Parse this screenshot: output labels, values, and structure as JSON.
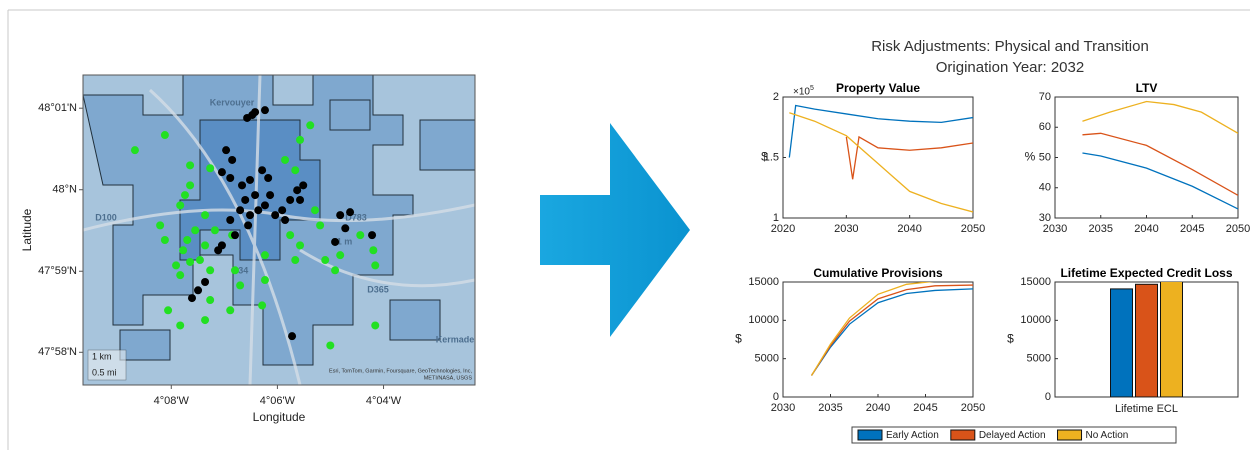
{
  "figure_title": [
    "Risk Adjustments: Physical and Transition",
    "Origination Year: 2032"
  ],
  "legend": [
    {
      "name": "Early Action",
      "color": "#0072BD"
    },
    {
      "name": "Delayed Action",
      "color": "#D95319"
    },
    {
      "name": "No Action",
      "color": "#EDB120"
    }
  ],
  "map_labels": [
    "Kervouyer",
    "D100",
    "D783",
    "D34",
    "D365",
    "81 m",
    "Kermade"
  ],
  "map_scale": [
    "1 km",
    "0.5 mi"
  ],
  "map_attribution": [
    "Esri, TomTom, Garmin, Foursquare, GeoTechnologies, Inc,",
    "METI/NASA, USGS"
  ],
  "chart_data": [
    {
      "type": "map",
      "xlabel": "Longitude",
      "ylabel": "Latitude",
      "xlim": [
        -4.161,
        -4.038
      ],
      "ylim": [
        47.96,
        48.0235
      ],
      "xticks": [
        {
          "value": -4.1333,
          "label": "4°08'W"
        },
        {
          "value": -4.1,
          "label": "4°06'W"
        },
        {
          "value": -4.0667,
          "label": "4°04'W"
        }
      ],
      "yticks": [
        {
          "value": 47.9667,
          "label": "47°58'N"
        },
        {
          "value": 47.9833,
          "label": "47°59'N"
        },
        {
          "value": 48.0,
          "label": "48°N"
        },
        {
          "value": 48.0167,
          "label": "48°01'N"
        }
      ],
      "series": [
        {
          "color": "#22e022",
          "x": [
            -4.1447,
            -4.1353,
            -4.1274,
            -4.1274,
            -4.1211,
            -4.129,
            -4.1305,
            -4.1227,
            -4.1196,
            -4.1258,
            -4.1283,
            -4.1296,
            -4.1353,
            -4.1368,
            -4.1274,
            -4.1243,
            -4.1211,
            -4.1318,
            -4.1343,
            -4.1305,
            -4.1227,
            -4.1211,
            -4.1133,
            -4.1117,
            -4.1039,
            -4.1039,
            -4.1048,
            -4.0944,
            -4.0929,
            -4.096,
            -4.0976,
            -4.0944,
            -4.0929,
            -4.0897,
            -4.0882,
            -4.0866,
            -4.085,
            -4.0819,
            -4.0803,
            -4.074,
            -4.0699,
            -4.0693,
            -4.0693,
            -4.0834,
            -4.1142,
            -4.1227,
            -4.1305,
            -4.1148
          ],
          "y": [
            48.0081,
            48.0112,
            48.005,
            48.0009,
            48.0044,
            47.9989,
            47.9968,
            47.9948,
            47.9917,
            47.9917,
            47.9897,
            47.9876,
            47.9897,
            47.9927,
            47.9852,
            47.9856,
            47.9835,
            47.9845,
            47.9753,
            47.9722,
            47.9733,
            47.9774,
            47.9835,
            47.9804,
            47.9866,
            47.9815,
            47.9763,
            47.9856,
            47.9886,
            47.9907,
            48.0061,
            48.004,
            48.0102,
            48.0132,
            47.9958,
            47.9927,
            47.9856,
            47.9835,
            47.9866,
            47.9907,
            47.9876,
            47.9845,
            47.9722,
            47.9681,
            47.9907,
            47.9886,
            47.9825,
            47.9753
          ]
        },
        {
          "color": "#000000",
          "x": [
            -4.1095,
            -4.1079,
            -4.107,
            -4.1039,
            -4.1161,
            -4.1142,
            -4.1174,
            -4.1148,
            -4.1111,
            -4.1086,
            -4.107,
            -4.1101,
            -4.1117,
            -4.1086,
            -4.106,
            -4.1039,
            -4.1023,
            -4.1007,
            -4.0985,
            -4.096,
            -4.0938,
            -4.0919,
            -4.0929,
            -4.0976,
            -4.1092,
            -4.1148,
            -4.1133,
            -4.1174,
            -4.1186,
            -4.1227,
            -4.1249,
            -4.1268,
            -4.0803,
            -4.0772,
            -4.0787,
            -4.0819,
            -4.0703,
            -4.0954,
            -4.1048,
            -4.1029
          ],
          "y": [
            48.0147,
            48.0153,
            48.0159,
            48.0163,
            48.0081,
            48.0061,
            48.0036,
            48.0024,
            48.0009,
            48.002,
            47.9989,
            47.9979,
            47.9958,
            47.9948,
            47.9958,
            47.9968,
            47.9989,
            47.9948,
            47.9958,
            47.9979,
            47.9999,
            48.0009,
            47.9979,
            47.9938,
            47.9927,
            47.9938,
            47.9907,
            47.9886,
            47.9876,
            47.9811,
            47.9794,
            47.9778,
            47.9948,
            47.9954,
            47.9921,
            47.9893,
            47.9907,
            47.97,
            48.004,
            48.0024
          ]
        }
      ]
    },
    {
      "type": "line",
      "title": "Property Value",
      "ylabel": "$",
      "yscale_label": "×10",
      "yscale_exponent": 5,
      "xlim": [
        2020,
        2050
      ],
      "xticks": [
        2020,
        2030,
        2040,
        2050
      ],
      "ylim": [
        1,
        2
      ],
      "yticks": [
        1,
        1.5,
        2
      ],
      "grid": false,
      "series": [
        {
          "x": [
            2021,
            2022,
            2025,
            2030,
            2035,
            2040,
            2045,
            2050
          ],
          "values": [
            1.5,
            1.93,
            1.9,
            1.86,
            1.82,
            1.8,
            1.79,
            1.83
          ]
        },
        {
          "x": [
            2030,
            2031,
            2032,
            2035,
            2040,
            2045,
            2050
          ],
          "values": [
            1.67,
            1.32,
            1.67,
            1.58,
            1.56,
            1.58,
            1.62
          ]
        },
        {
          "x": [
            2021,
            2025,
            2030,
            2035,
            2040,
            2045,
            2050
          ],
          "values": [
            1.87,
            1.8,
            1.68,
            1.45,
            1.22,
            1.12,
            1.05
          ]
        }
      ]
    },
    {
      "type": "line",
      "title": "LTV",
      "ylabel": "%",
      "xlim": [
        2030,
        2050
      ],
      "xticks": [
        2030,
        2035,
        2040,
        2045,
        2050
      ],
      "ylim": [
        30,
        70
      ],
      "yticks": [
        30,
        40,
        50,
        60,
        70
      ],
      "grid": false,
      "series": [
        {
          "x": [
            2033,
            2035,
            2040,
            2045,
            2050
          ],
          "values": [
            51.5,
            50.5,
            46.5,
            40.5,
            33
          ]
        },
        {
          "x": [
            2033,
            2035,
            2040,
            2045,
            2050
          ],
          "values": [
            57.5,
            58,
            54,
            46,
            37.5
          ]
        },
        {
          "x": [
            2033,
            2036,
            2040,
            2043,
            2046,
            2050
          ],
          "values": [
            62,
            65,
            68.5,
            67.5,
            65,
            58
          ]
        }
      ]
    },
    {
      "type": "line",
      "title": "Cumulative Provisions",
      "ylabel": "$",
      "xlim": [
        2030,
        2050
      ],
      "xticks": [
        2030,
        2035,
        2040,
        2045,
        2050
      ],
      "ylim": [
        0,
        15000
      ],
      "yticks": [
        0,
        5000,
        10000,
        15000
      ],
      "grid": false,
      "series": [
        {
          "x": [
            2033,
            2035,
            2037,
            2040,
            2043,
            2046,
            2050
          ],
          "values": [
            2800,
            6500,
            9500,
            12300,
            13500,
            13900,
            14100
          ]
        },
        {
          "x": [
            2033,
            2035,
            2037,
            2040,
            2043,
            2046,
            2050
          ],
          "values": [
            2800,
            6700,
            9900,
            12800,
            14000,
            14500,
            14600
          ]
        },
        {
          "x": [
            2033,
            2035,
            2037,
            2040,
            2043,
            2046,
            2050
          ],
          "values": [
            2800,
            6900,
            10300,
            13400,
            14700,
            15100,
            15200
          ]
        }
      ]
    },
    {
      "type": "bar",
      "title": "Lifetime Expected Credit Loss",
      "ylabel": "$",
      "categories": [
        "Lifetime ECL"
      ],
      "ylim": [
        0,
        15000
      ],
      "yticks": [
        0,
        5000,
        10000,
        15000
      ],
      "grid": false,
      "series": [
        {
          "values": [
            14100
          ]
        },
        {
          "values": [
            14700
          ]
        },
        {
          "values": [
            15200
          ]
        }
      ]
    }
  ]
}
